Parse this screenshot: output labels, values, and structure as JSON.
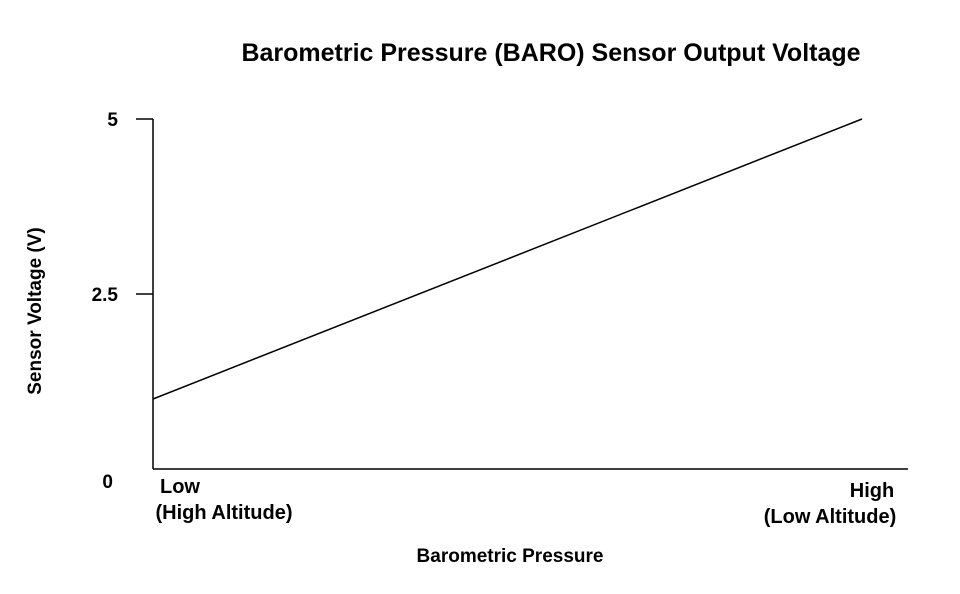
{
  "chart_data": {
    "type": "line",
    "title": "Barometric Pressure (BARO) Sensor Output Voltage",
    "xlabel": "Barometric Pressure",
    "ylabel": "Sensor Voltage (V)",
    "ylim": [
      0,
      5
    ],
    "yticks": [
      "0",
      "2.5",
      "5"
    ],
    "xlim": [
      0,
      1
    ],
    "x_categories": [
      {
        "line1": "Low",
        "line2": "(High Altitude)"
      },
      {
        "line1": "High",
        "line2": "(Low Altitude)"
      }
    ],
    "grid": false,
    "series": [
      {
        "x": [
          0,
          1
        ],
        "y": [
          1,
          5
        ]
      }
    ]
  }
}
